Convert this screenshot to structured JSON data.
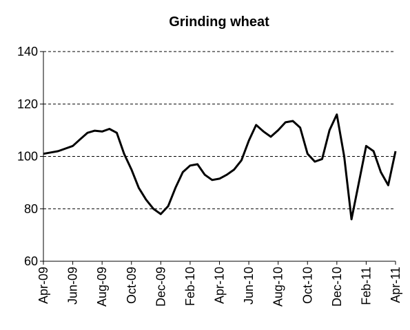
{
  "chart_data": {
    "type": "line",
    "title": "Grinding wheat",
    "categories": [
      "Apr-09",
      null,
      null,
      null,
      "Jun-09",
      null,
      null,
      null,
      "Aug-09",
      null,
      null,
      null,
      "Oct-09",
      null,
      null,
      null,
      "Dec-09",
      null,
      null,
      null,
      "Feb-10",
      null,
      null,
      null,
      "Apr-10",
      null,
      null,
      null,
      "Jun-10",
      null,
      null,
      null,
      "Aug-10",
      null,
      null,
      null,
      "Oct-10",
      null,
      null,
      null,
      "Dec-10",
      null,
      null,
      null,
      "Feb-11",
      null,
      null,
      null,
      "Apr-11"
    ],
    "values": [
      101,
      101.5,
      102,
      103,
      104,
      106.5,
      109,
      109.8,
      109.5,
      110.5,
      109,
      101,
      95,
      88,
      83.5,
      80,
      78,
      81,
      88,
      94,
      96.5,
      97,
      93,
      91,
      91.5,
      93,
      95,
      98.5,
      106,
      112,
      109.5,
      107.5,
      110,
      113,
      113.5,
      111,
      101,
      98,
      99,
      110,
      116,
      100,
      76,
      90,
      104,
      102,
      94,
      89,
      102
    ],
    "color": "#000000",
    "ylim": [
      60,
      140
    ],
    "yticks": [
      60,
      80,
      100,
      120,
      140
    ],
    "grid": true
  }
}
